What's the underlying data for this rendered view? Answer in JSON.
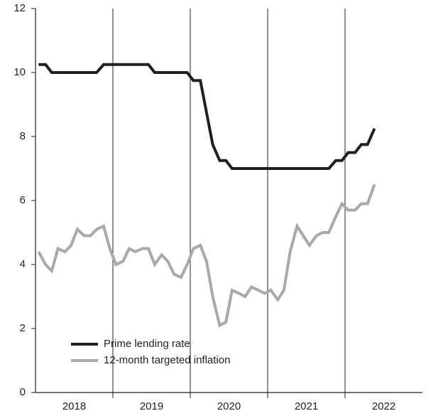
{
  "chart_data": {
    "type": "line",
    "x": [
      2018.04,
      2018.13,
      2018.21,
      2018.29,
      2018.38,
      2018.46,
      2018.54,
      2018.63,
      2018.71,
      2018.79,
      2018.88,
      2018.96,
      2019.04,
      2019.13,
      2019.21,
      2019.29,
      2019.38,
      2019.46,
      2019.54,
      2019.63,
      2019.71,
      2019.79,
      2019.88,
      2019.96,
      2020.04,
      2020.13,
      2020.21,
      2020.29,
      2020.38,
      2020.46,
      2020.54,
      2020.63,
      2020.71,
      2020.79,
      2020.88,
      2020.96,
      2021.04,
      2021.13,
      2021.21,
      2021.29,
      2021.38,
      2021.46,
      2021.54,
      2021.63,
      2021.71,
      2021.79,
      2021.88,
      2021.96,
      2022.04,
      2022.13,
      2022.21,
      2022.29,
      2022.38
    ],
    "series": [
      {
        "name": "Prime lending rate",
        "color": "#231f20",
        "values": [
          10.25,
          10.25,
          10.0,
          10.0,
          10.0,
          10.0,
          10.0,
          10.0,
          10.0,
          10.0,
          10.25,
          10.25,
          10.25,
          10.25,
          10.25,
          10.25,
          10.25,
          10.25,
          10.0,
          10.0,
          10.0,
          10.0,
          10.0,
          10.0,
          9.75,
          9.75,
          8.75,
          7.75,
          7.25,
          7.25,
          7.0,
          7.0,
          7.0,
          7.0,
          7.0,
          7.0,
          7.0,
          7.0,
          7.0,
          7.0,
          7.0,
          7.0,
          7.0,
          7.0,
          7.0,
          7.0,
          7.25,
          7.25,
          7.5,
          7.5,
          7.75,
          7.75,
          8.25
        ]
      },
      {
        "name": "12-month targeted inflation",
        "color": "#a7a9ac",
        "values": [
          4.4,
          4.0,
          3.8,
          4.5,
          4.4,
          4.6,
          5.1,
          4.9,
          4.9,
          5.1,
          5.2,
          4.5,
          4.0,
          4.1,
          4.5,
          4.4,
          4.5,
          4.5,
          4.0,
          4.3,
          4.1,
          3.7,
          3.6,
          4.0,
          4.5,
          4.6,
          4.1,
          3.0,
          2.1,
          2.2,
          3.2,
          3.1,
          3.0,
          3.3,
          3.2,
          3.1,
          3.2,
          2.9,
          3.2,
          4.4,
          5.2,
          4.9,
          4.6,
          4.9,
          5.0,
          5.0,
          5.5,
          5.9,
          5.7,
          5.7,
          5.9,
          5.9,
          6.5
        ]
      }
    ],
    "xlim": [
      2018,
      2023
    ],
    "xticks": [
      {
        "value": 2018.5,
        "label": "2018"
      },
      {
        "value": 2019.5,
        "label": "2019"
      },
      {
        "value": 2020.5,
        "label": "2020"
      },
      {
        "value": 2021.5,
        "label": "2021"
      },
      {
        "value": 2022.5,
        "label": "2022"
      }
    ],
    "x_gridlines": [
      2019,
      2020,
      2021,
      2022
    ],
    "ylim": [
      0,
      12
    ],
    "yticks": [
      0,
      2,
      4,
      6,
      8,
      10,
      12
    ],
    "legend": "lower left"
  }
}
